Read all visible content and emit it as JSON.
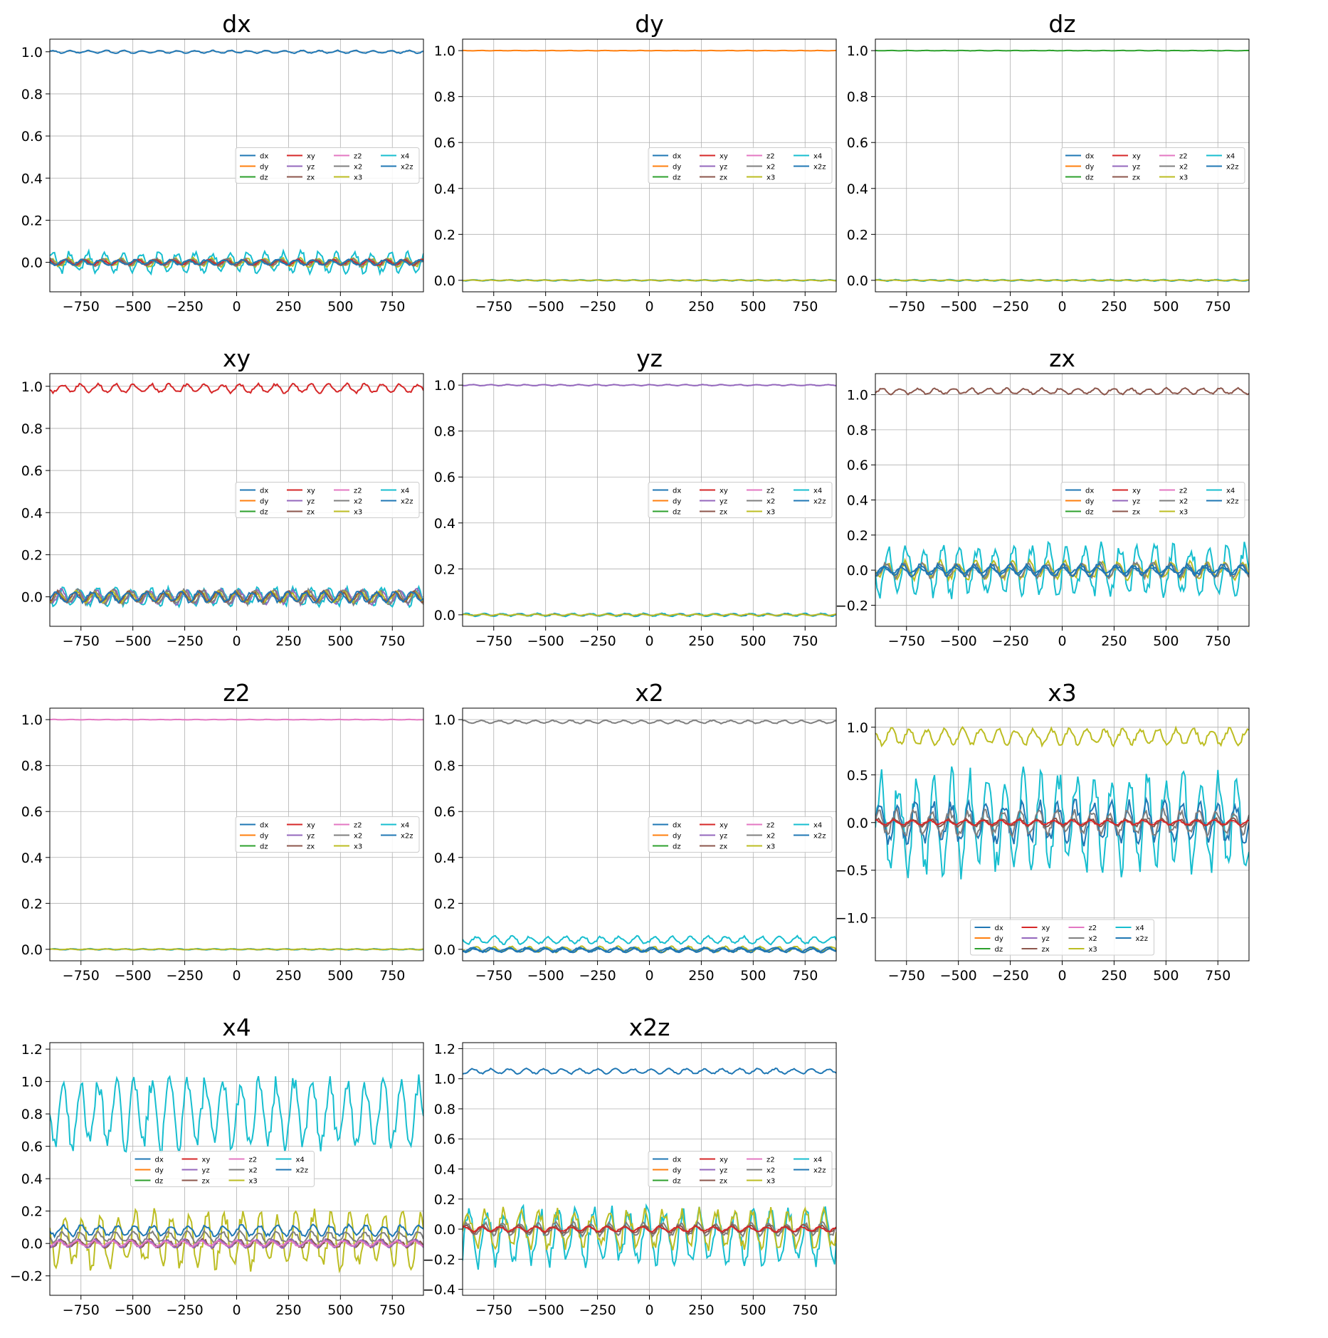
{
  "figure": {
    "x_ticks": [
      -750,
      -500,
      -250,
      0,
      250,
      500,
      750
    ],
    "legend_entries": [
      "dx",
      "dy",
      "dz",
      "xy",
      "yz",
      "zx",
      "z2",
      "x2",
      "x3",
      "x4",
      "x2z"
    ],
    "colors": {
      "dx": "#1f77b4",
      "dy": "#ff7f0e",
      "dz": "#2ca02c",
      "xy": "#d62728",
      "yz": "#9467bd",
      "zx": "#8c564b",
      "z2": "#e377c2",
      "x2": "#7f7f7f",
      "x3": "#bcbd22",
      "x4": "#17becf",
      "x2z": "#1f77b4"
    }
  },
  "chart_data": [
    {
      "type": "line",
      "title": "dx",
      "xlim": [
        -900,
        900
      ],
      "ylim": [
        -0.14,
        1.06
      ],
      "yticks": [
        0.0,
        0.2,
        0.4,
        0.6,
        0.8,
        1.0
      ],
      "legend": "center-right",
      "dominant": "dx",
      "dominant_level": 1.0,
      "dominant_amp": 0.008,
      "bands": [
        {
          "series": "x4",
          "amp": 0.06
        },
        {
          "series": "x3",
          "amp": 0.025
        },
        {
          "series": "x2",
          "amp": 0.02
        },
        {
          "series": "xy",
          "amp": 0.015
        },
        {
          "series": "zx",
          "amp": 0.015
        },
        {
          "series": "x2z",
          "amp": 0.015
        }
      ]
    },
    {
      "type": "line",
      "title": "dy",
      "xlim": [
        -900,
        900
      ],
      "ylim": [
        -0.05,
        1.05
      ],
      "yticks": [
        0.0,
        0.2,
        0.4,
        0.6,
        0.8,
        1.0
      ],
      "legend": "center-right",
      "dominant": "dy",
      "dominant_level": 1.0,
      "dominant_amp": 0.001,
      "bands": [
        {
          "series": "x4",
          "amp": 0.003
        },
        {
          "series": "x2z",
          "amp": 0.002
        },
        {
          "series": "x3",
          "amp": 0.002
        }
      ]
    },
    {
      "type": "line",
      "title": "dz",
      "xlim": [
        -900,
        900
      ],
      "ylim": [
        -0.05,
        1.05
      ],
      "yticks": [
        0.0,
        0.2,
        0.4,
        0.6,
        0.8,
        1.0
      ],
      "legend": "center-right",
      "dominant": "dz",
      "dominant_level": 1.0,
      "dominant_amp": 0.001,
      "bands": [
        {
          "series": "x4",
          "amp": 0.004
        },
        {
          "series": "x2z",
          "amp": 0.002
        },
        {
          "series": "x3",
          "amp": 0.002
        }
      ]
    },
    {
      "type": "line",
      "title": "xy",
      "xlim": [
        -900,
        900
      ],
      "ylim": [
        -0.14,
        1.06
      ],
      "yticks": [
        0.0,
        0.2,
        0.4,
        0.6,
        0.8,
        1.0
      ],
      "legend": "center-right",
      "dominant": "xy",
      "dominant_level": 0.99,
      "dominant_amp": 0.025,
      "bands": [
        {
          "series": "x4",
          "amp": 0.05
        },
        {
          "series": "yz",
          "amp": 0.04
        },
        {
          "series": "x2",
          "amp": 0.04
        },
        {
          "series": "x3",
          "amp": 0.03
        },
        {
          "series": "zx",
          "amp": 0.03
        },
        {
          "series": "x2z",
          "amp": 0.03
        }
      ]
    },
    {
      "type": "line",
      "title": "yz",
      "xlim": [
        -900,
        900
      ],
      "ylim": [
        -0.05,
        1.05
      ],
      "yticks": [
        0.0,
        0.2,
        0.4,
        0.6,
        0.8,
        1.0
      ],
      "legend": "center-right",
      "dominant": "yz",
      "dominant_level": 1.0,
      "dominant_amp": 0.003,
      "bands": [
        {
          "series": "x4",
          "amp": 0.008
        },
        {
          "series": "x2z",
          "amp": 0.005
        },
        {
          "series": "x3",
          "amp": 0.004
        }
      ]
    },
    {
      "type": "line",
      "title": "zx",
      "xlim": [
        -900,
        900
      ],
      "ylim": [
        -0.32,
        1.12
      ],
      "yticks": [
        -0.2,
        0.0,
        0.2,
        0.4,
        0.6,
        0.8,
        1.0
      ],
      "legend": "center-right",
      "dominant": "zx",
      "dominant_level": 1.02,
      "dominant_amp": 0.02,
      "bands": [
        {
          "series": "x4",
          "amp": 0.17
        },
        {
          "series": "x3",
          "amp": 0.06
        },
        {
          "series": "x2",
          "amp": 0.05
        },
        {
          "series": "x2z",
          "amp": 0.04
        },
        {
          "series": "dx",
          "amp": 0.02
        }
      ]
    },
    {
      "type": "line",
      "title": "z2",
      "xlim": [
        -900,
        900
      ],
      "ylim": [
        -0.05,
        1.05
      ],
      "yticks": [
        0.0,
        0.2,
        0.4,
        0.6,
        0.8,
        1.0
      ],
      "legend": "center-right",
      "dominant": "z2",
      "dominant_level": 1.0,
      "dominant_amp": 0.001,
      "bands": [
        {
          "series": "x4",
          "amp": 0.003
        },
        {
          "series": "x2z",
          "amp": 0.002
        },
        {
          "series": "x3",
          "amp": 0.002
        }
      ]
    },
    {
      "type": "line",
      "title": "x2",
      "xlim": [
        -900,
        900
      ],
      "ylim": [
        -0.05,
        1.05
      ],
      "yticks": [
        0.0,
        0.2,
        0.4,
        0.6,
        0.8,
        1.0
      ],
      "legend": "center-right",
      "dominant": "x2",
      "dominant_level": 0.99,
      "dominant_amp": 0.008,
      "bands": [
        {
          "series": "x4",
          "amp": 0.02,
          "offset": 0.04
        },
        {
          "series": "x3",
          "amp": 0.015
        },
        {
          "series": "x2z",
          "amp": 0.01,
          "offset": -0.005
        },
        {
          "series": "dx",
          "amp": 0.01
        }
      ]
    },
    {
      "type": "line",
      "title": "x3",
      "xlim": [
        -900,
        900
      ],
      "ylim": [
        -1.45,
        1.2
      ],
      "yticks": [
        -1.0,
        -0.5,
        0.0,
        0.5,
        1.0
      ],
      "legend": "lower-center",
      "dominant": "x3",
      "dominant_level": 0.9,
      "dominant_amp": 0.1,
      "bands": [
        {
          "series": "x4",
          "amp": 0.6
        },
        {
          "series": "x2z",
          "amp": 0.25
        },
        {
          "series": "x2",
          "amp": 0.15
        },
        {
          "series": "zx",
          "amp": 0.05
        },
        {
          "series": "xy",
          "amp": 0.03
        }
      ]
    },
    {
      "type": "line",
      "title": "x4",
      "xlim": [
        -900,
        900
      ],
      "ylim": [
        -0.32,
        1.24
      ],
      "yticks": [
        -0.2,
        0.0,
        0.2,
        0.4,
        0.6,
        0.8,
        1.0,
        1.2
      ],
      "legend": "center",
      "dominant": "x4",
      "dominant_level": 0.8,
      "dominant_amp": 0.25,
      "bands": [
        {
          "series": "x3",
          "amp": 0.2,
          "offset": 0.02
        },
        {
          "series": "x2z",
          "amp": 0.04,
          "offset": 0.08
        },
        {
          "series": "x2",
          "amp": 0.04,
          "offset": 0.04
        },
        {
          "series": "zx",
          "amp": 0.03
        },
        {
          "series": "yz",
          "amp": 0.03
        },
        {
          "series": "z2",
          "amp": 0.02
        }
      ]
    },
    {
      "type": "line",
      "title": "x2z",
      "xlim": [
        -900,
        900
      ],
      "ylim": [
        -0.44,
        1.24
      ],
      "yticks": [
        -0.4,
        -0.2,
        0.0,
        0.2,
        0.4,
        0.6,
        0.8,
        1.0,
        1.2
      ],
      "legend": "center-right",
      "dominant": "x2z",
      "dominant_level": 1.05,
      "dominant_amp": 0.02,
      "bands": [
        {
          "series": "x4",
          "amp": 0.22,
          "offset": -0.05
        },
        {
          "series": "x3",
          "amp": 0.15
        },
        {
          "series": "x2",
          "amp": 0.05
        },
        {
          "series": "zx",
          "amp": 0.03
        },
        {
          "series": "xy",
          "amp": 0.02
        }
      ]
    }
  ]
}
